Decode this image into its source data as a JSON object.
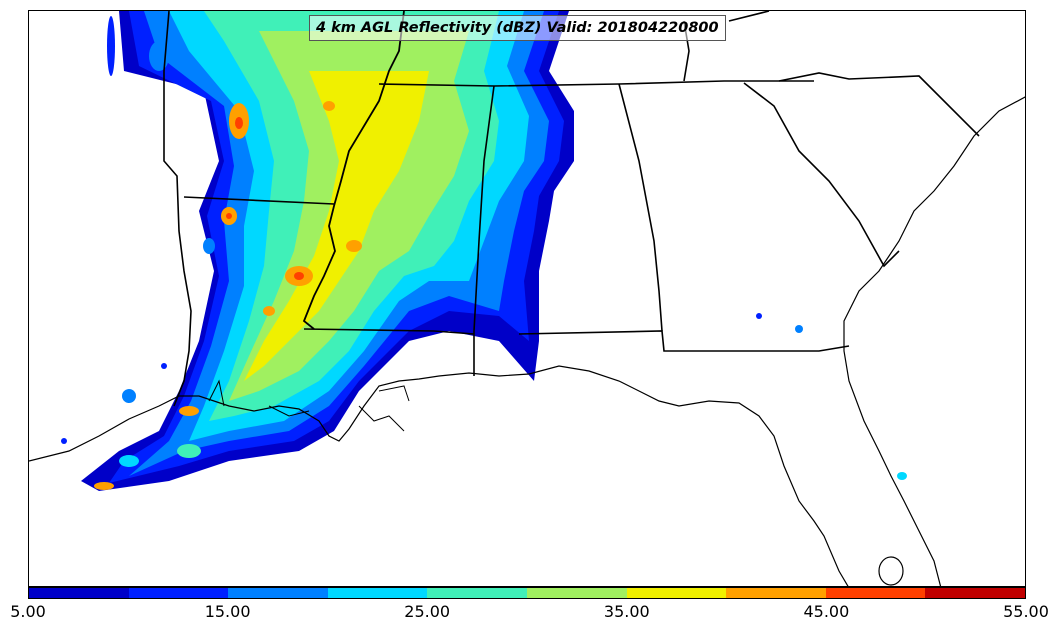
{
  "title": "4 km AGL Reflectivity (dBZ) Valid: 201804220800",
  "colorbar": {
    "min": 5,
    "max": 55,
    "labels": [
      "5.00",
      "15.00",
      "25.00",
      "35.00",
      "45.00",
      "55.00"
    ],
    "colors": [
      "#0000c8",
      "#0020ff",
      "#0080ff",
      "#00d8ff",
      "#40f0b8",
      "#a0f060",
      "#f0f000",
      "#ffa000",
      "#ff4000",
      "#c00000"
    ]
  },
  "colors": {
    "boundary": "#000000",
    "background": "#ffffff"
  }
}
